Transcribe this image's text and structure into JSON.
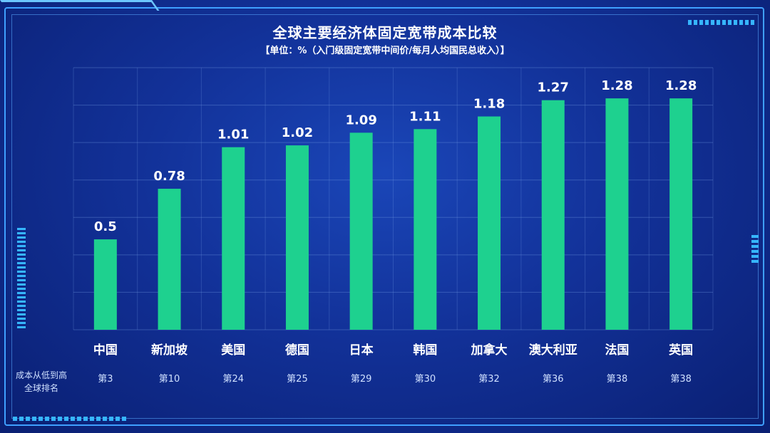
{
  "chart_data": {
    "type": "bar",
    "title": "全球主要经济体固定宽带成本比较",
    "subtitle": "【单位：%（入门级固定宽带中间价/每月人均国民总收入）】",
    "categories": [
      "中国",
      "新加坡",
      "美国",
      "德国",
      "日本",
      "韩国",
      "加拿大",
      "澳大利亚",
      "法国",
      "英国"
    ],
    "values": [
      0.5,
      0.78,
      1.01,
      1.02,
      1.09,
      1.11,
      1.18,
      1.27,
      1.28,
      1.28
    ],
    "value_labels": [
      "0.5",
      "0.78",
      "1.01",
      "1.02",
      "1.09",
      "1.11",
      "1.18",
      "1.27",
      "1.28",
      "1.28"
    ],
    "ranks": [
      "第3",
      "第10",
      "第24",
      "第25",
      "第29",
      "第30",
      "第32",
      "第36",
      "第38",
      "第38"
    ],
    "rank_row_label_line1": "成本从低到高",
    "rank_row_label_line2": "全球排名",
    "ylim": [
      0,
      1.45
    ],
    "bar_color": "#1ed18f",
    "grid": true
  }
}
